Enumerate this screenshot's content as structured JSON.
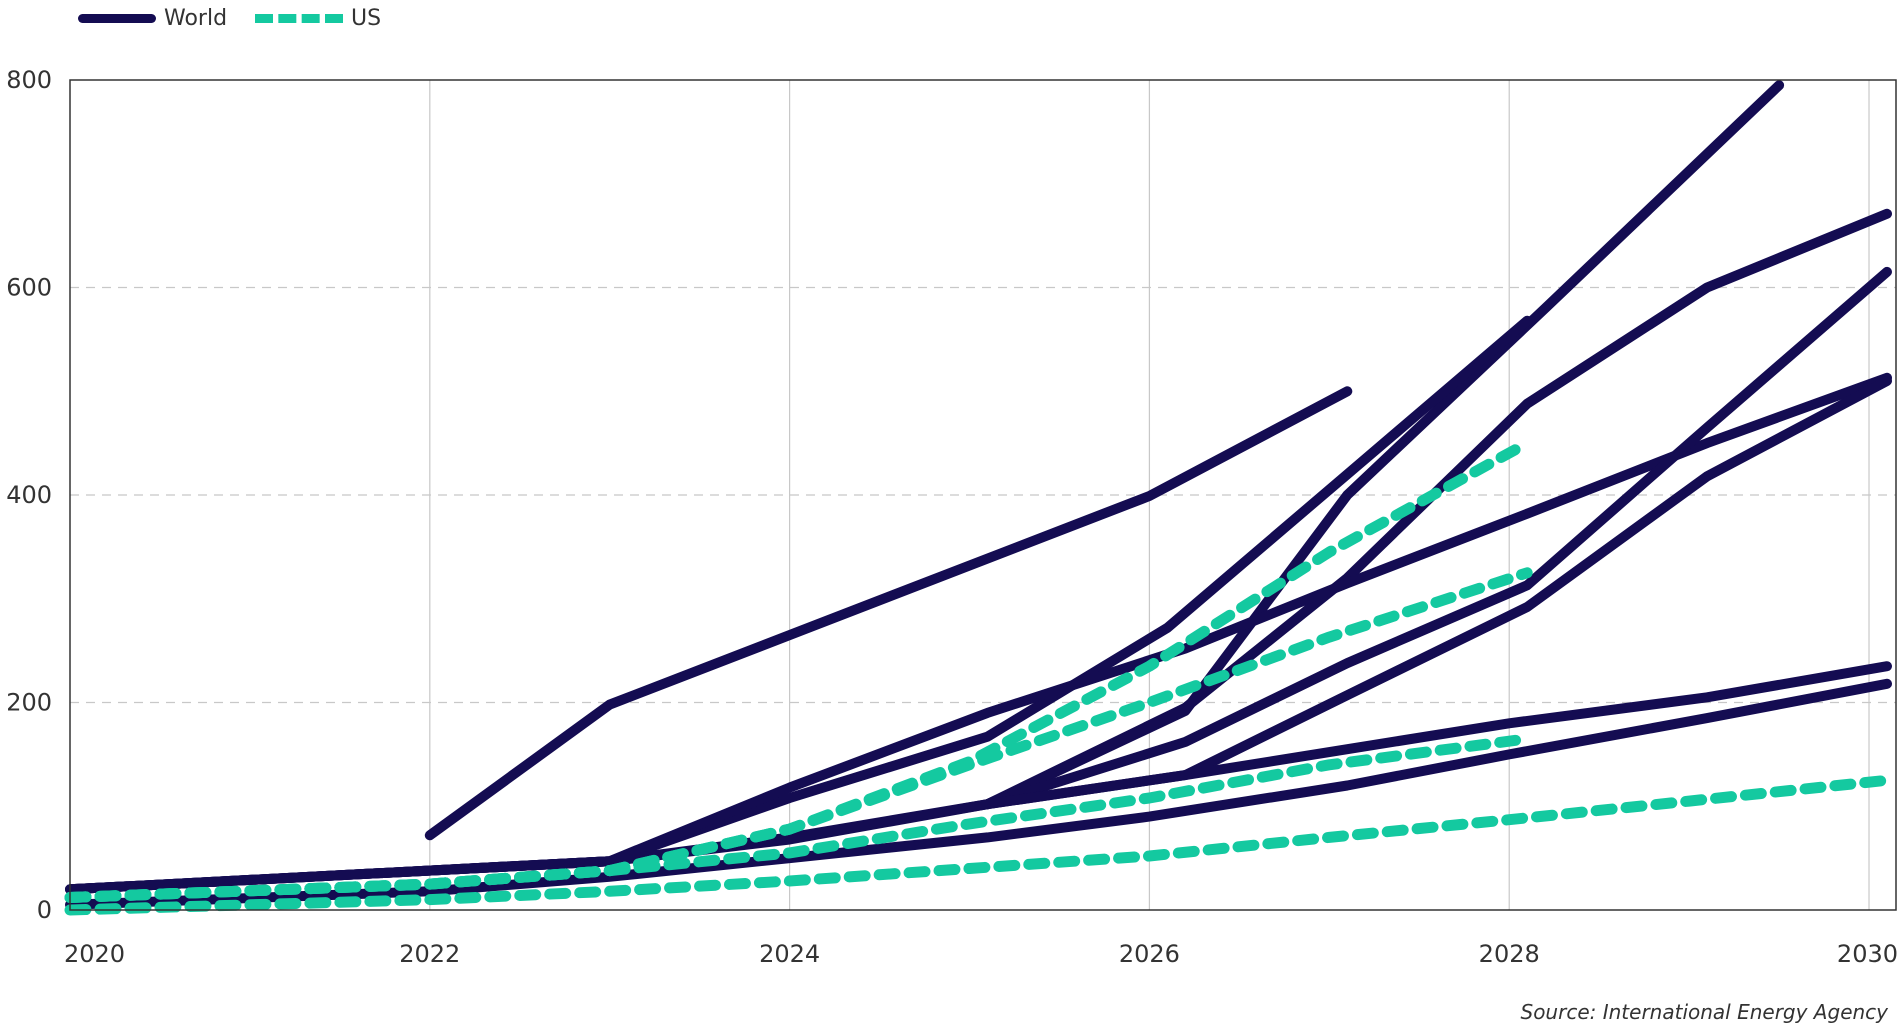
{
  "legend": {
    "items": [
      {
        "label": "World",
        "color": "#140c52",
        "style": "solid"
      },
      {
        "label": "US",
        "color": "#14c9a0",
        "style": "dashed"
      }
    ]
  },
  "source": "Source: International Energy Agency",
  "chart_data": {
    "type": "line",
    "title": "",
    "xlabel": "",
    "ylabel": "",
    "xlim": [
      2020,
      2030.15
    ],
    "ylim": [
      0,
      800
    ],
    "xticks": [
      2020,
      2022,
      2024,
      2026,
      2028,
      2030
    ],
    "xtick_labels": [
      "2020",
      "2022",
      "2024",
      "2026",
      "2028",
      "2030"
    ],
    "yticks": [
      0,
      200,
      400,
      600,
      800
    ],
    "ytick_labels": [
      "0",
      "200",
      "400",
      "600",
      "800"
    ],
    "grid": {
      "x": true,
      "y": true
    },
    "legend_position": "top-left",
    "series": [
      {
        "group": "World",
        "points": [
          [
            2022,
            72
          ],
          [
            2023,
            198
          ],
          [
            2026,
            399
          ],
          [
            2027.1,
            500
          ]
        ]
      },
      {
        "group": "World",
        "points": [
          [
            2020,
            20
          ],
          [
            2023,
            47
          ],
          [
            2024,
            70
          ],
          [
            2025.1,
            102
          ],
          [
            2026.2,
            192
          ],
          [
            2027.1,
            400
          ],
          [
            2028.2,
            580
          ],
          [
            2029.5,
            795
          ]
        ]
      },
      {
        "group": "World",
        "points": [
          [
            2020,
            20
          ],
          [
            2023,
            47
          ],
          [
            2024,
            108
          ],
          [
            2025.1,
            167
          ],
          [
            2026.1,
            272
          ],
          [
            2027.1,
            420
          ],
          [
            2028.1,
            568
          ]
        ]
      },
      {
        "group": "World",
        "points": [
          [
            2025.1,
            102
          ],
          [
            2026.2,
            195
          ],
          [
            2027.1,
            320
          ],
          [
            2028.1,
            488
          ],
          [
            2029.1,
            600
          ],
          [
            2030.1,
            671
          ]
        ]
      },
      {
        "group": "World",
        "points": [
          [
            2020,
            20
          ],
          [
            2023,
            47
          ],
          [
            2024,
            118
          ],
          [
            2025.1,
            190
          ],
          [
            2026.2,
            252
          ],
          [
            2027.1,
            315
          ],
          [
            2028.1,
            382
          ],
          [
            2029.1,
            450
          ],
          [
            2030.1,
            513
          ]
        ]
      },
      {
        "group": "World",
        "points": [
          [
            2025.1,
            102
          ],
          [
            2026.2,
            162
          ],
          [
            2027.1,
            238
          ],
          [
            2028.1,
            313
          ],
          [
            2029.1,
            465
          ],
          [
            2030.1,
            615
          ]
        ]
      },
      {
        "group": "World",
        "points": [
          [
            2025.1,
            102
          ],
          [
            2026.2,
            130
          ],
          [
            2027.1,
            207
          ],
          [
            2028.1,
            292
          ],
          [
            2029.1,
            418
          ],
          [
            2030.1,
            510
          ]
        ]
      },
      {
        "group": "World",
        "points": [
          [
            2020,
            5
          ],
          [
            2022,
            18
          ],
          [
            2023,
            32
          ],
          [
            2024,
            50
          ],
          [
            2025.1,
            70
          ],
          [
            2026,
            90
          ],
          [
            2027.1,
            120
          ],
          [
            2028,
            150
          ],
          [
            2029.1,
            185
          ],
          [
            2030.1,
            218
          ]
        ]
      },
      {
        "group": "World",
        "points": [
          [
            2020,
            20
          ],
          [
            2023,
            47
          ],
          [
            2024,
            68
          ],
          [
            2025.1,
            102
          ],
          [
            2026.2,
            130
          ],
          [
            2027.1,
            155
          ],
          [
            2028,
            180
          ],
          [
            2029.1,
            205
          ],
          [
            2030.1,
            235
          ]
        ]
      },
      {
        "group": "US",
        "points": [
          [
            2020,
            12
          ],
          [
            2022,
            25
          ],
          [
            2023,
            38
          ],
          [
            2024,
            78
          ],
          [
            2025,
            143
          ],
          [
            2026,
            235
          ],
          [
            2027,
            345
          ],
          [
            2028.1,
            450
          ]
        ]
      },
      {
        "group": "US",
        "points": [
          [
            2020,
            12
          ],
          [
            2022,
            25
          ],
          [
            2023,
            38
          ],
          [
            2024,
            78
          ],
          [
            2025,
            140
          ],
          [
            2026,
            200
          ],
          [
            2027,
            263
          ],
          [
            2028.1,
            325
          ]
        ]
      },
      {
        "group": "US",
        "points": [
          [
            2020,
            12
          ],
          [
            2022,
            25
          ],
          [
            2023,
            38
          ],
          [
            2024,
            55
          ],
          [
            2025,
            83
          ],
          [
            2026,
            108
          ],
          [
            2027,
            140
          ],
          [
            2028.1,
            165
          ]
        ]
      },
      {
        "group": "US",
        "points": [
          [
            2020,
            0
          ],
          [
            2022,
            10
          ],
          [
            2023,
            18
          ],
          [
            2024,
            28
          ],
          [
            2025,
            40
          ],
          [
            2026,
            52
          ],
          [
            2027,
            70
          ],
          [
            2028,
            87
          ],
          [
            2029,
            105
          ],
          [
            2030.1,
            125
          ]
        ]
      }
    ]
  }
}
